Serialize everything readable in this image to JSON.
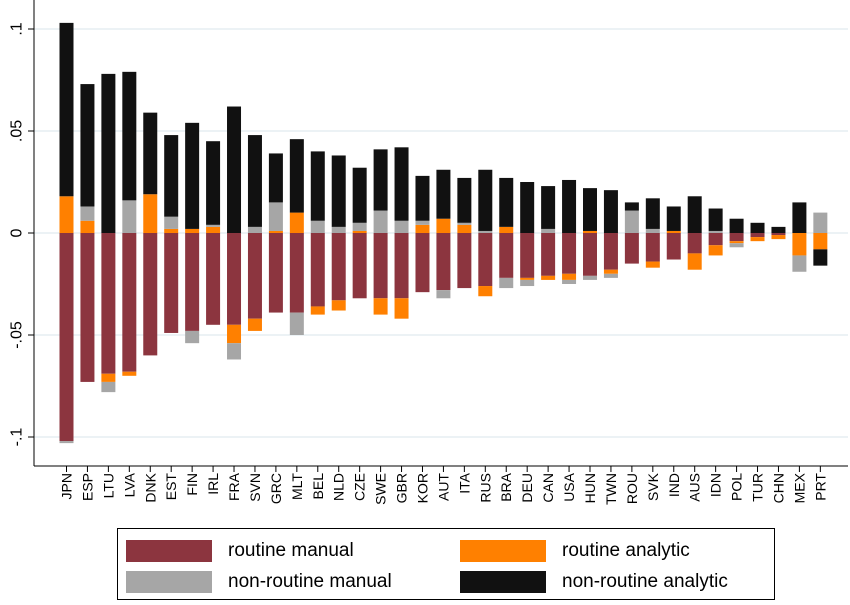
{
  "chart_data": {
    "type": "bar",
    "stacked": true,
    "title": "",
    "xlabel": "",
    "ylabel": "",
    "ylim": [
      -0.11,
      0.105
    ],
    "yticks": [
      -0.1,
      -0.05,
      0,
      0.05,
      0.1
    ],
    "ytick_labels": [
      "-.1",
      "-.05",
      "0",
      ".05",
      ".1"
    ],
    "grid": true,
    "legend_position": "bottom",
    "colors": {
      "routine_manual": "#8c353f",
      "routine_analytic": "#ff8000",
      "nonroutine_manual": "#a6a6a6",
      "nonroutine_analytic": "#111111"
    },
    "categories": [
      "JPN",
      "ESP",
      "LTU",
      "LVA",
      "DNK",
      "EST",
      "FIN",
      "IRL",
      "FRA",
      "SVN",
      "GRC",
      "MLT",
      "BEL",
      "NLD",
      "CZE",
      "SWE",
      "GBR",
      "KOR",
      "AUT",
      "ITA",
      "RUS",
      "BRA",
      "DEU",
      "CAN",
      "USA",
      "HUN",
      "TWN",
      "ROU",
      "SVK",
      "IND",
      "AUS",
      "IDN",
      "POL",
      "TUR",
      "CHN",
      "MEX",
      "PRT"
    ],
    "series": [
      {
        "name": "routine manual",
        "key": "routine_manual",
        "values": [
          -0.102,
          -0.073,
          -0.069,
          -0.068,
          -0.06,
          -0.049,
          -0.048,
          -0.045,
          -0.045,
          -0.042,
          -0.039,
          -0.039,
          -0.036,
          -0.033,
          -0.032,
          -0.032,
          -0.032,
          -0.029,
          -0.028,
          -0.027,
          -0.026,
          -0.022,
          -0.022,
          -0.021,
          -0.02,
          -0.021,
          -0.018,
          -0.015,
          -0.014,
          -0.013,
          -0.01,
          -0.006,
          -0.004,
          -0.002,
          -0.001,
          0,
          0
        ]
      },
      {
        "name": "routine analytic",
        "key": "routine_analytic",
        "values": [
          0.018,
          0.006,
          -0.004,
          -0.002,
          0.019,
          0.002,
          0.002,
          0.003,
          -0.009,
          -0.006,
          0.001,
          0.01,
          -0.004,
          -0.005,
          0.001,
          -0.008,
          -0.01,
          0.004,
          0.007,
          0.004,
          -0.005,
          0.003,
          -0.001,
          -0.002,
          -0.003,
          0.001,
          -0.002,
          0,
          -0.003,
          0.001,
          -0.008,
          -0.005,
          -0.001,
          -0.002,
          -0.002,
          -0.011,
          -0.008
        ]
      },
      {
        "name": "non-routine manual",
        "key": "nonroutine_manual",
        "values": [
          -0.001,
          0.007,
          -0.005,
          0.016,
          0,
          0.006,
          -0.006,
          0.001,
          -0.008,
          0.003,
          0.014,
          -0.011,
          0.006,
          0.003,
          0.004,
          0.011,
          0.006,
          0.002,
          -0.004,
          0.001,
          0.001,
          -0.005,
          -0.003,
          0.002,
          -0.002,
          -0.002,
          -0.002,
          0.011,
          0.002,
          0,
          0,
          0.001,
          -0.002,
          0,
          0,
          -0.008,
          0.01
        ]
      },
      {
        "name": "non-routine analytic",
        "key": "nonroutine_analytic",
        "values": [
          0.085,
          0.06,
          0.078,
          0.063,
          0.04,
          0.04,
          0.052,
          0.041,
          0.062,
          0.045,
          0.024,
          0.036,
          0.034,
          0.035,
          0.027,
          0.03,
          0.036,
          0.022,
          0.024,
          0.022,
          0.03,
          0.024,
          0.025,
          0.021,
          0.026,
          0.021,
          0.021,
          0.004,
          0.015,
          0.012,
          0.018,
          0.011,
          0.007,
          0.005,
          0.003,
          0.015,
          -0.008
        ]
      }
    ]
  }
}
